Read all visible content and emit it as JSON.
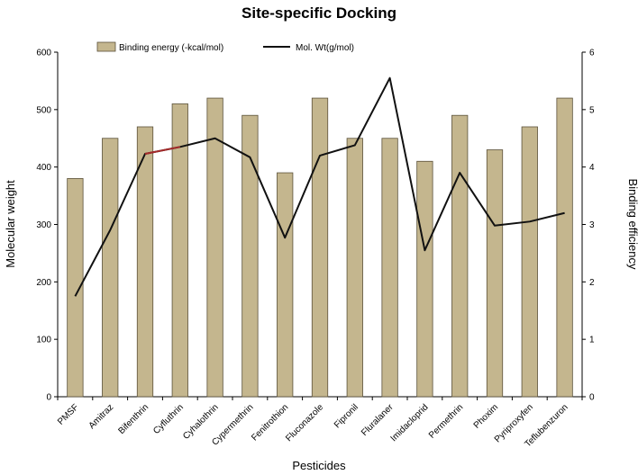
{
  "chart_data": {
    "type": "bar",
    "title": "Site-specific Docking",
    "xlabel": "Pesticides",
    "ylabel": "Molecular weight",
    "y2label": "Binding efficiency",
    "ylim": [
      0,
      600
    ],
    "y2lim": [
      0,
      6
    ],
    "yticks": [
      "0",
      "100",
      "200",
      "300",
      "400",
      "500",
      "600"
    ],
    "y2ticks": [
      "0",
      "1",
      "2",
      "3",
      "4",
      "5",
      "6"
    ],
    "categories": [
      "PMSF",
      "Amitraz",
      "Bifenthrin",
      "Cyfluthrin",
      "Cyhalothrin",
      "Cypermethrin",
      "Fenitrothion",
      "Fluconazole",
      "Fipronil",
      "Fluralaner",
      "Imidacloprid",
      "Permethrin",
      "Phoxim",
      "Pyriproxyfen",
      "Teflubenzuron"
    ],
    "series": [
      {
        "name": "Binding energy (-kcal/mol)",
        "type": "bar",
        "axis": "left",
        "values": [
          380,
          450,
          470,
          510,
          520,
          490,
          390,
          520,
          450,
          450,
          410,
          490,
          430,
          470,
          520
        ]
      },
      {
        "name": "Mol. Wt(g/mol)",
        "type": "line",
        "axis": "left",
        "values": [
          175,
          290,
          423,
          435,
          450,
          417,
          277,
          420,
          438,
          555,
          255,
          390,
          298,
          305,
          320
        ]
      }
    ],
    "grid": false,
    "legend_position": "top"
  },
  "colors": {
    "bar_fill": "#c4b68e",
    "bar_stroke": "#5b513a",
    "line": "#111111",
    "line_highlight": "#a52a2a"
  }
}
